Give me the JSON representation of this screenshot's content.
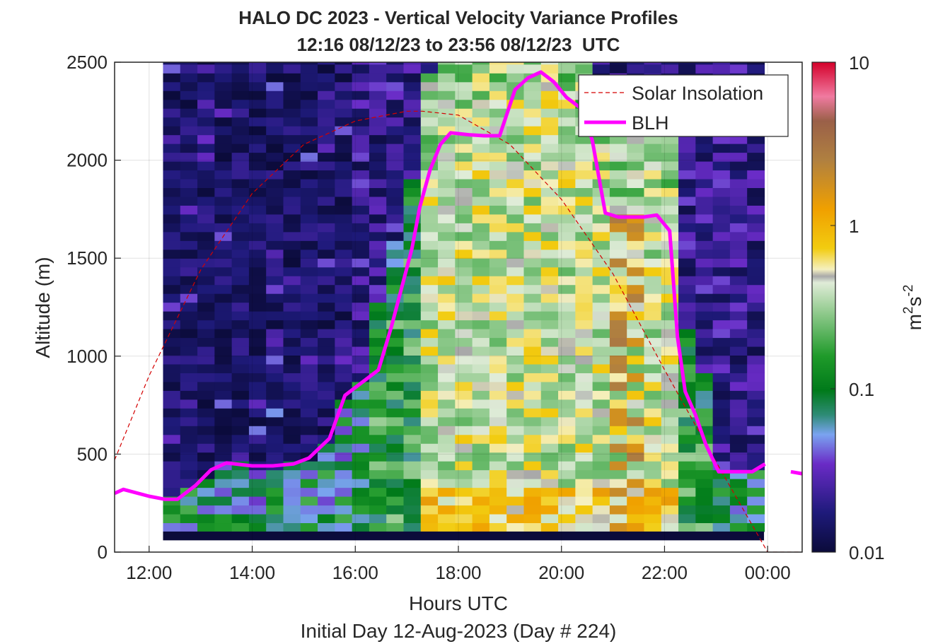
{
  "chart_data": {
    "type": "heatmap",
    "title": "HALO DC 2023 - Vertical Velocity Variance Profiles",
    "subtitle": "12:16 08/12/23 to 23:56 08/12/23  UTC",
    "xlabel": "Hours UTC",
    "ylabel": "Altitude (m)",
    "footer": "Initial Day 12-Aug-2023 (Day # 224)",
    "xlim": [
      11.33,
      24.67
    ],
    "ylim": [
      0,
      2500
    ],
    "x_tick_values": [
      12,
      14,
      16,
      18,
      20,
      22,
      24
    ],
    "x_tick_labels": [
      "12:00",
      "14:00",
      "16:00",
      "18:00",
      "20:00",
      "22:00",
      "00:00"
    ],
    "y_tick_values": [
      0,
      500,
      1000,
      1500,
      2000,
      2500
    ],
    "y_tick_labels": [
      "0",
      "500",
      "1000",
      "1500",
      "2000",
      "2500"
    ],
    "grid": true,
    "legend_position": "top-right",
    "colorbar": {
      "label_base": "m",
      "label_exp1": "2",
      "label_mid": "s",
      "label_exp2": "-2",
      "scale": "log",
      "limits": [
        0.01,
        10
      ],
      "tick_labels": [
        "10",
        "1",
        "0.1",
        "0.01"
      ],
      "tick_values": [
        10,
        1,
        0.1,
        0.01
      ]
    },
    "heatmap_grid": {
      "x_start_hours": 12.27,
      "x_end_hours": 23.93,
      "x_step_hours": 0.3333,
      "y_start_m": 105,
      "y_end_m": 2500,
      "y_step_m": 45,
      "cell_value_units": "m^2 s^-2",
      "profile_notes": "Low variance (~0.01-0.03) aloft before 16:30 UTC; convective mixed layer variance 0.1-3 m^2 s^-2 from ~16:30 to ~22:30 UTC below the BLH; decaying to ~0.02-0.1 after 23:00 UTC"
    },
    "series": [
      {
        "name": "Solar Insolation",
        "style": "dashed",
        "color": "#d40000",
        "x": [
          11.33,
          12.0,
          13.0,
          14.0,
          15.0,
          16.0,
          17.0,
          17.3,
          18.0,
          19.0,
          20.0,
          21.0,
          22.0,
          23.0,
          24.0,
          24.67
        ],
        "y": [
          470,
          900,
          1440,
          1830,
          2080,
          2200,
          2250,
          2250,
          2230,
          2080,
          1800,
          1420,
          930,
          460,
          0,
          0
        ]
      },
      {
        "name": "BLH",
        "style": "solid",
        "color": "#ff00ff",
        "x": [
          11.33,
          11.5,
          12.0,
          12.3,
          12.55,
          12.9,
          13.2,
          13.5,
          14.0,
          14.4,
          14.8,
          15.1,
          15.5,
          15.8,
          16.1,
          16.45,
          16.7,
          16.9,
          17.1,
          17.25,
          17.45,
          17.65,
          17.85,
          18.2,
          18.5,
          18.8,
          19.1,
          19.35,
          19.6,
          19.85,
          20.1,
          20.4,
          20.6,
          20.85,
          21.1,
          21.4,
          21.6,
          21.85,
          22.1,
          22.25,
          22.4,
          22.6,
          22.8,
          23.05,
          23.4,
          23.7,
          23.95
        ],
        "y": [
          300,
          320,
          285,
          270,
          270,
          340,
          420,
          455,
          440,
          440,
          450,
          480,
          580,
          800,
          860,
          930,
          1150,
          1350,
          1550,
          1760,
          1950,
          2080,
          2140,
          2130,
          2125,
          2125,
          2360,
          2420,
          2450,
          2400,
          2320,
          2260,
          2100,
          1730,
          1710,
          1710,
          1710,
          1720,
          1640,
          1100,
          820,
          700,
          550,
          410,
          410,
          410,
          450
        ],
        "extra_segment_x": [
          24.45,
          24.67
        ],
        "extra_segment_y": [
          410,
          400
        ]
      }
    ]
  }
}
